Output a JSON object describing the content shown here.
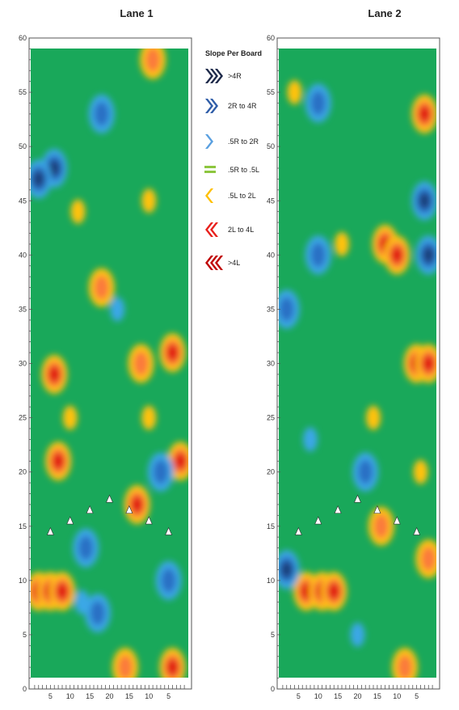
{
  "chart_data": [
    {
      "type": "heatmap",
      "title": "Lane 1",
      "ylim": [
        0,
        60
      ],
      "yticks": [
        0,
        5,
        10,
        15,
        20,
        25,
        30,
        35,
        40,
        45,
        50,
        55,
        60
      ],
      "board_tick_labels": [
        "5",
        "10",
        "15",
        "20",
        "15",
        "10",
        "5"
      ],
      "arrows": [
        {
          "board": 5,
          "distance": 14.5
        },
        {
          "board": 10,
          "distance": 15.5
        },
        {
          "board": 15,
          "distance": 16.5
        },
        {
          "board": 20,
          "distance": 17.5
        },
        {
          "board": 25,
          "distance": 16.5
        },
        {
          "board": 30,
          "distance": 15.5
        },
        {
          "board": 35,
          "distance": 14.5
        }
      ],
      "hotspots": [
        {
          "x": 2,
          "y": 9,
          "level": 3
        },
        {
          "x": 5,
          "y": 9,
          "level": 3
        },
        {
          "x": 8,
          "y": 9,
          "level": 3
        },
        {
          "x": 6,
          "y": 29,
          "level": 3
        },
        {
          "x": 7,
          "y": 21,
          "level": 3
        },
        {
          "x": 27,
          "y": 17,
          "level": 3
        },
        {
          "x": 36,
          "y": 31,
          "level": 3
        },
        {
          "x": 38,
          "y": 21,
          "level": 3
        },
        {
          "x": 36,
          "y": 2,
          "level": 3
        },
        {
          "x": 24,
          "y": 2,
          "level": 2
        },
        {
          "x": 18,
          "y": 37,
          "level": 2
        },
        {
          "x": 28,
          "y": 30,
          "level": 2
        },
        {
          "x": 31,
          "y": 58,
          "level": 2
        },
        {
          "x": 6,
          "y": 48,
          "level": -3
        },
        {
          "x": 2,
          "y": 47,
          "level": -3
        },
        {
          "x": 17,
          "y": 7,
          "level": -2
        },
        {
          "x": 13,
          "y": 8,
          "level": -1
        },
        {
          "x": 14,
          "y": 13,
          "level": -2
        },
        {
          "x": 18,
          "y": 53,
          "level": -2
        },
        {
          "x": 22,
          "y": 35,
          "level": -1
        },
        {
          "x": 35,
          "y": 10,
          "level": -2
        },
        {
          "x": 33,
          "y": 20,
          "level": -2
        },
        {
          "x": 10,
          "y": 25,
          "level": 1
        },
        {
          "x": 30,
          "y": 25,
          "level": 1
        },
        {
          "x": 12,
          "y": 44,
          "level": 1
        },
        {
          "x": 30,
          "y": 45,
          "level": 1
        }
      ]
    },
    {
      "type": "heatmap",
      "title": "Lane 2",
      "ylim": [
        0,
        60
      ],
      "yticks": [
        0,
        5,
        10,
        15,
        20,
        25,
        30,
        35,
        40,
        45,
        50,
        55,
        60
      ],
      "board_tick_labels": [
        "5",
        "10",
        "15",
        "20",
        "15",
        "10",
        "5"
      ],
      "arrows": [
        {
          "board": 5,
          "distance": 14.5
        },
        {
          "board": 10,
          "distance": 15.5
        },
        {
          "board": 15,
          "distance": 16.5
        },
        {
          "board": 20,
          "distance": 17.5
        },
        {
          "board": 25,
          "distance": 16.5
        },
        {
          "board": 30,
          "distance": 15.5
        },
        {
          "board": 35,
          "distance": 14.5
        }
      ],
      "hotspots": [
        {
          "x": 7,
          "y": 9,
          "level": 3
        },
        {
          "x": 11,
          "y": 9,
          "level": 3
        },
        {
          "x": 14,
          "y": 9,
          "level": 3
        },
        {
          "x": 35,
          "y": 30,
          "level": 3
        },
        {
          "x": 38,
          "y": 30,
          "level": 3
        },
        {
          "x": 27,
          "y": 41,
          "level": 3
        },
        {
          "x": 30,
          "y": 40,
          "level": 3
        },
        {
          "x": 37,
          "y": 53,
          "level": 3
        },
        {
          "x": 32,
          "y": 2,
          "level": 2
        },
        {
          "x": 38,
          "y": 12,
          "level": 2
        },
        {
          "x": 26,
          "y": 15,
          "level": 2
        },
        {
          "x": 2,
          "y": 11,
          "level": -3
        },
        {
          "x": 2,
          "y": 35,
          "level": -2
        },
        {
          "x": 37,
          "y": 45,
          "level": -3
        },
        {
          "x": 38,
          "y": 40,
          "level": -3
        },
        {
          "x": 10,
          "y": 54,
          "level": -2
        },
        {
          "x": 22,
          "y": 20,
          "level": -2
        },
        {
          "x": 10,
          "y": 40,
          "level": -2
        },
        {
          "x": 20,
          "y": 5,
          "level": -1
        },
        {
          "x": 8,
          "y": 23,
          "level": -1
        },
        {
          "x": 16,
          "y": 41,
          "level": 1
        },
        {
          "x": 24,
          "y": 25,
          "level": 1
        },
        {
          "x": 36,
          "y": 20,
          "level": 1
        },
        {
          "x": 4,
          "y": 55,
          "level": 1
        }
      ]
    }
  ],
  "legend": {
    "title": "Slope Per Board",
    "items": [
      {
        "label": ">4R",
        "color": "#1e2a4a",
        "shape": "chevron-right-3"
      },
      {
        "label": "2R to 4R",
        "color": "#2f5da8",
        "shape": "chevron-right-2"
      },
      {
        "label": ".5R to 2R",
        "color": "#5aa0e0",
        "shape": "chevron-right-1"
      },
      {
        "label": ".5R to .5L",
        "color": "#8dc63f",
        "shape": "bars"
      },
      {
        "label": ".5L to 2L",
        "color": "#ffc000",
        "shape": "chevron-left-1"
      },
      {
        "label": "2L to 4L",
        "color": "#e8201c",
        "shape": "chevron-left-2"
      },
      {
        "label": ">4L",
        "color": "#c00000",
        "shape": "chevron-left-3"
      }
    ]
  },
  "colors": {
    "base": "#19a85a",
    "l3": "#e0190f",
    "l2": "#fb7a3a",
    "l1": "#ffc20a",
    "m1": "#3aa7e6",
    "m2": "#2a6fc4",
    "m3": "#1d3f7a",
    "arrow": "#ffffff"
  }
}
